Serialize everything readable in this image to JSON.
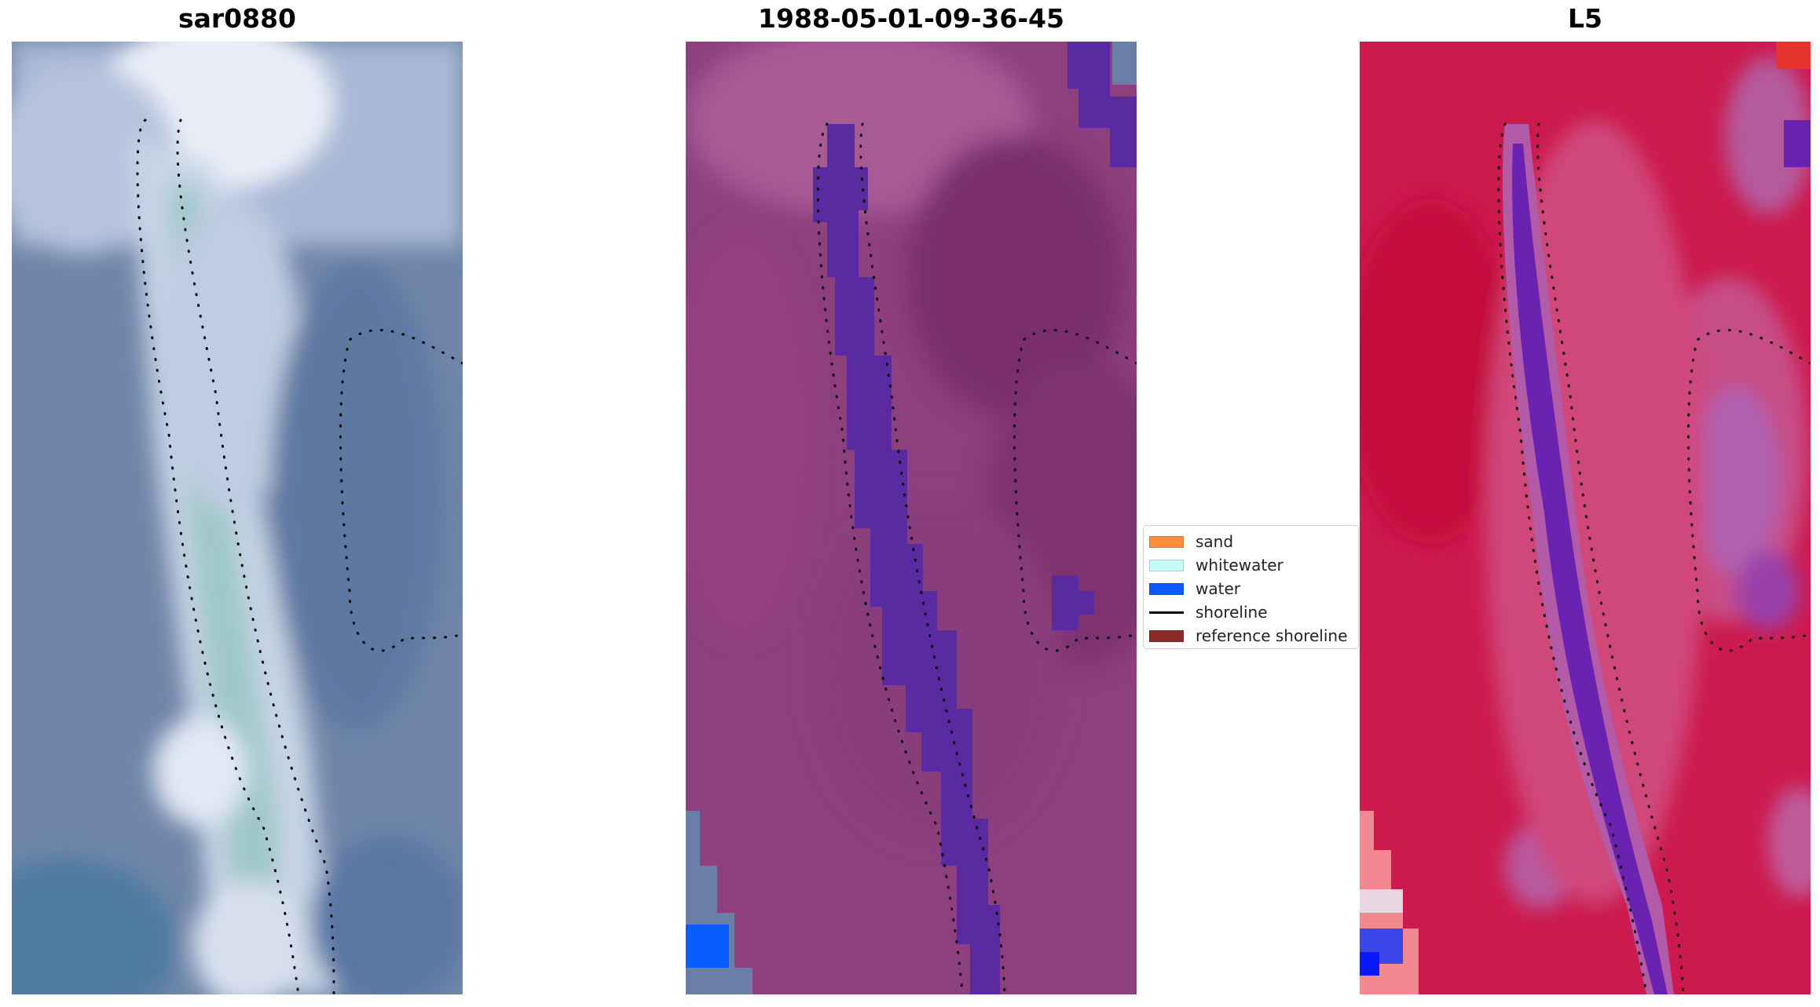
{
  "panels": [
    {
      "title": "sar0880"
    },
    {
      "title": "1988-05-01-09-36-45"
    },
    {
      "title": "L5"
    }
  ],
  "legend": {
    "items": [
      {
        "label": "sand",
        "kind": "patch",
        "color": "#ff8c3a"
      },
      {
        "label": "whitewater",
        "kind": "patch",
        "color": "#c8fafa"
      },
      {
        "label": "water",
        "kind": "patch",
        "color": "#0a5cff"
      },
      {
        "label": "shoreline",
        "kind": "line",
        "color": "#000000"
      },
      {
        "label": "reference shoreline",
        "kind": "patch",
        "color": "#8e2a2a"
      }
    ]
  },
  "colors": {
    "rgb_base": "#6f86a8",
    "classified_base": "#8e3f7e",
    "class_water_purple": "#5a2aa0",
    "index_base": "#cc1a4e"
  }
}
